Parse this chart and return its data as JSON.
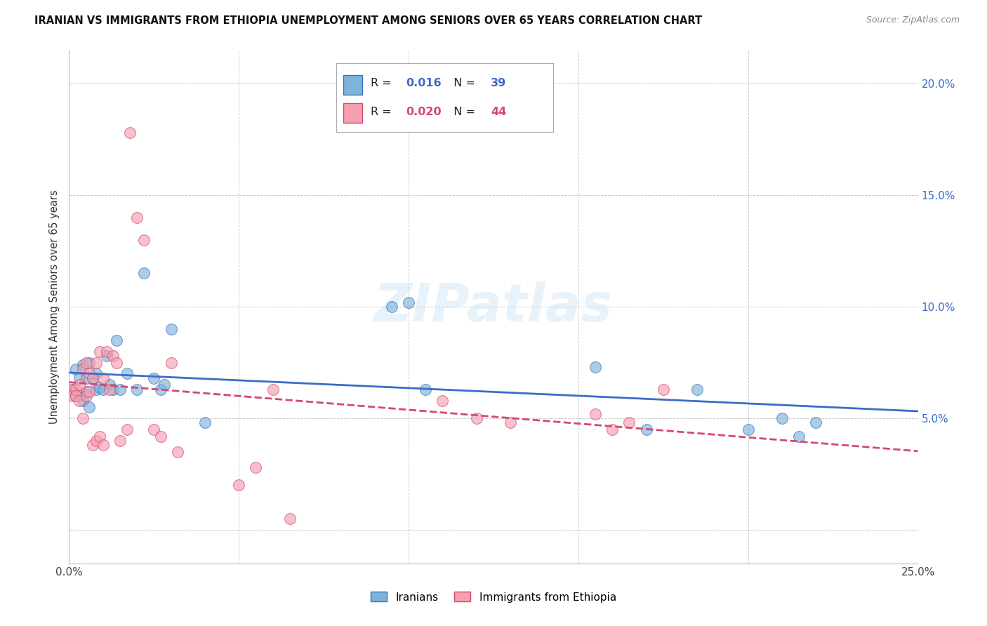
{
  "title": "IRANIAN VS IMMIGRANTS FROM ETHIOPIA UNEMPLOYMENT AMONG SENIORS OVER 65 YEARS CORRELATION CHART",
  "source": "Source: ZipAtlas.com",
  "ylabel": "Unemployment Among Seniors over 65 years",
  "xlim": [
    0.0,
    0.25
  ],
  "ylim": [
    -0.015,
    0.215
  ],
  "iranians_R": 0.016,
  "iranians_N": 39,
  "ethiopia_R": 0.02,
  "ethiopia_N": 44,
  "blue_color": "#7EB4D8",
  "pink_color": "#F4A0B0",
  "line_blue": "#3B6CC7",
  "line_pink": "#D44870",
  "iranians_x": [
    0.001,
    0.002,
    0.002,
    0.003,
    0.003,
    0.004,
    0.004,
    0.005,
    0.005,
    0.006,
    0.006,
    0.007,
    0.008,
    0.008,
    0.009,
    0.01,
    0.011,
    0.012,
    0.013,
    0.014,
    0.015,
    0.017,
    0.02,
    0.022,
    0.025,
    0.027,
    0.028,
    0.03,
    0.04,
    0.095,
    0.1,
    0.105,
    0.155,
    0.17,
    0.185,
    0.2,
    0.21,
    0.215,
    0.22
  ],
  "iranians_y": [
    0.063,
    0.06,
    0.072,
    0.06,
    0.068,
    0.058,
    0.074,
    0.062,
    0.068,
    0.055,
    0.075,
    0.068,
    0.063,
    0.07,
    0.064,
    0.063,
    0.078,
    0.065,
    0.063,
    0.085,
    0.063,
    0.07,
    0.063,
    0.115,
    0.068,
    0.063,
    0.065,
    0.09,
    0.048,
    0.1,
    0.102,
    0.063,
    0.073,
    0.045,
    0.063,
    0.045,
    0.05,
    0.042,
    0.048
  ],
  "ethiopia_x": [
    0.001,
    0.001,
    0.002,
    0.002,
    0.003,
    0.003,
    0.004,
    0.004,
    0.005,
    0.005,
    0.006,
    0.006,
    0.007,
    0.007,
    0.008,
    0.008,
    0.009,
    0.009,
    0.01,
    0.01,
    0.011,
    0.012,
    0.013,
    0.014,
    0.015,
    0.017,
    0.018,
    0.02,
    0.022,
    0.025,
    0.027,
    0.03,
    0.032,
    0.05,
    0.055,
    0.06,
    0.065,
    0.11,
    0.12,
    0.13,
    0.155,
    0.16,
    0.165,
    0.175
  ],
  "ethiopia_y": [
    0.063,
    0.06,
    0.063,
    0.06,
    0.065,
    0.058,
    0.072,
    0.05,
    0.075,
    0.06,
    0.07,
    0.062,
    0.068,
    0.038,
    0.075,
    0.04,
    0.042,
    0.08,
    0.068,
    0.038,
    0.08,
    0.063,
    0.078,
    0.075,
    0.04,
    0.045,
    0.178,
    0.14,
    0.13,
    0.045,
    0.042,
    0.075,
    0.035,
    0.02,
    0.028,
    0.063,
    0.005,
    0.058,
    0.05,
    0.048,
    0.052,
    0.045,
    0.048,
    0.063
  ],
  "watermark": "ZIPatlas",
  "background_color": "#ffffff",
  "grid_color": "#cccccc",
  "ytick_positions": [
    0.0,
    0.05,
    0.1,
    0.15,
    0.2
  ],
  "ytick_labels": [
    "",
    "5.0%",
    "10.0%",
    "15.0%",
    "20.0%"
  ],
  "xtick_positions": [
    0.0,
    0.05,
    0.1,
    0.15,
    0.2,
    0.25
  ],
  "xtick_labels": [
    "0.0%",
    "",
    "",
    "",
    "",
    "25.0%"
  ]
}
